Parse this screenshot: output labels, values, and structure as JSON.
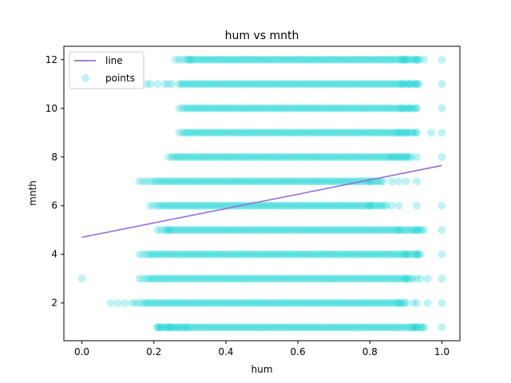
{
  "chart_data": {
    "type": "scatter",
    "title": "hum vs mnth",
    "xlabel": "hum",
    "ylabel": "mnth",
    "xlim": [
      -0.05,
      1.05
    ],
    "ylim": [
      0.45,
      12.55
    ],
    "xticks": [
      0.0,
      0.2,
      0.4,
      0.6,
      0.8,
      1.0
    ],
    "xtick_labels": [
      "0.0",
      "0.2",
      "0.4",
      "0.6",
      "0.8",
      "1.0"
    ],
    "yticks": [
      2,
      4,
      6,
      8,
      10,
      12
    ],
    "ytick_labels": [
      "2",
      "4",
      "6",
      "8",
      "10",
      "12"
    ],
    "grid": false,
    "legend_position": "top-left",
    "colors": {
      "points": "#00ced1",
      "line": "#9370db"
    },
    "series": [
      {
        "name": "points",
        "kind": "scatter",
        "rows": [
          {
            "y": 1,
            "dense": [
              0.21,
              0.95
            ],
            "x": [
              0.21,
              0.22,
              0.24,
              0.25,
              0.27,
              0.29,
              0.92,
              0.93,
              0.95,
              1.0
            ]
          },
          {
            "y": 2,
            "dense": [
              0.17,
              0.9
            ],
            "x": [
              0.08,
              0.1,
              0.12,
              0.14,
              0.15,
              0.16,
              0.88,
              0.9,
              0.92,
              0.93,
              0.96,
              1.0
            ]
          },
          {
            "y": 3,
            "dense": [
              0.18,
              0.92
            ],
            "x": [
              0.0,
              0.16,
              0.17,
              0.9,
              0.93,
              0.94,
              0.96,
              1.0
            ]
          },
          {
            "y": 4,
            "dense": [
              0.18,
              0.94
            ],
            "x": [
              0.16,
              0.17,
              0.9,
              0.93,
              0.94,
              1.0
            ]
          },
          {
            "y": 5,
            "dense": [
              0.23,
              0.95
            ],
            "x": [
              0.21,
              0.22,
              0.24,
              0.88,
              0.93,
              1.0
            ]
          },
          {
            "y": 6,
            "dense": [
              0.21,
              0.85
            ],
            "x": [
              0.19,
              0.2,
              0.8,
              0.86,
              0.88,
              0.93,
              1.0
            ]
          },
          {
            "y": 7,
            "dense": [
              0.2,
              0.84
            ],
            "x": [
              0.16,
              0.17,
              0.18,
              0.19,
              0.8,
              0.86,
              0.88,
              0.9,
              0.93
            ]
          },
          {
            "y": 8,
            "dense": [
              0.25,
              0.92
            ],
            "x": [
              0.24,
              0.86,
              0.88,
              0.9,
              0.93,
              1.0
            ]
          },
          {
            "y": 9,
            "dense": [
              0.28,
              0.93
            ],
            "x": [
              0.27,
              0.88,
              0.9,
              0.93,
              0.97,
              1.0
            ]
          },
          {
            "y": 10,
            "dense": [
              0.28,
              0.93
            ],
            "x": [
              0.27,
              0.89,
              0.91,
              0.93,
              1.0
            ]
          },
          {
            "y": 11,
            "dense": [
              0.27,
              0.94
            ],
            "x": [
              0.18,
              0.19,
              0.21,
              0.23,
              0.24,
              0.25,
              0.89,
              0.91,
              0.93,
              1.0
            ]
          },
          {
            "y": 12,
            "dense": [
              0.29,
              0.94
            ],
            "x": [
              0.26,
              0.27,
              0.28,
              0.3,
              0.89,
              0.9,
              0.93,
              0.95,
              1.0
            ]
          }
        ]
      },
      {
        "name": "line",
        "kind": "line",
        "x": [
          0.0,
          1.0
        ],
        "y": [
          4.7,
          7.65
        ]
      }
    ],
    "legend": [
      {
        "label": "line",
        "marker": "line"
      },
      {
        "label": "points",
        "marker": "circle"
      }
    ]
  }
}
